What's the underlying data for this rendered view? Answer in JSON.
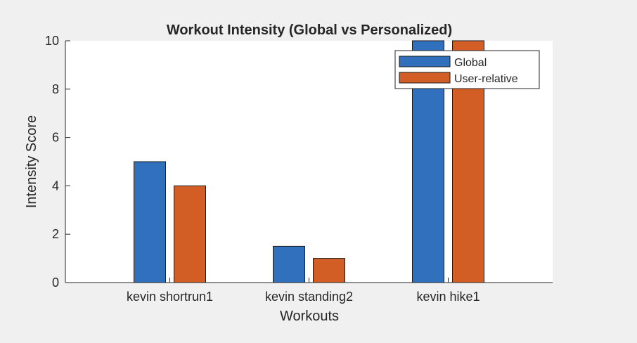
{
  "chart_data": {
    "type": "bar",
    "title": "Workout Intensity (Global vs Personalized)",
    "xlabel": "Workouts",
    "ylabel": "Intensity Score",
    "categories": [
      "kevin shortrun1",
      "kevin standing2",
      "kevin hike1"
    ],
    "series": [
      {
        "name": "Global",
        "values": [
          5,
          1.5,
          10
        ],
        "color": "#3070bd"
      },
      {
        "name": "User-relative",
        "values": [
          4,
          1,
          10
        ],
        "color": "#d25e26"
      }
    ],
    "ylim": [
      0,
      10
    ],
    "yticks": [
      0,
      2,
      4,
      6,
      8,
      10
    ],
    "grid": false,
    "legend_position": "top-right"
  }
}
